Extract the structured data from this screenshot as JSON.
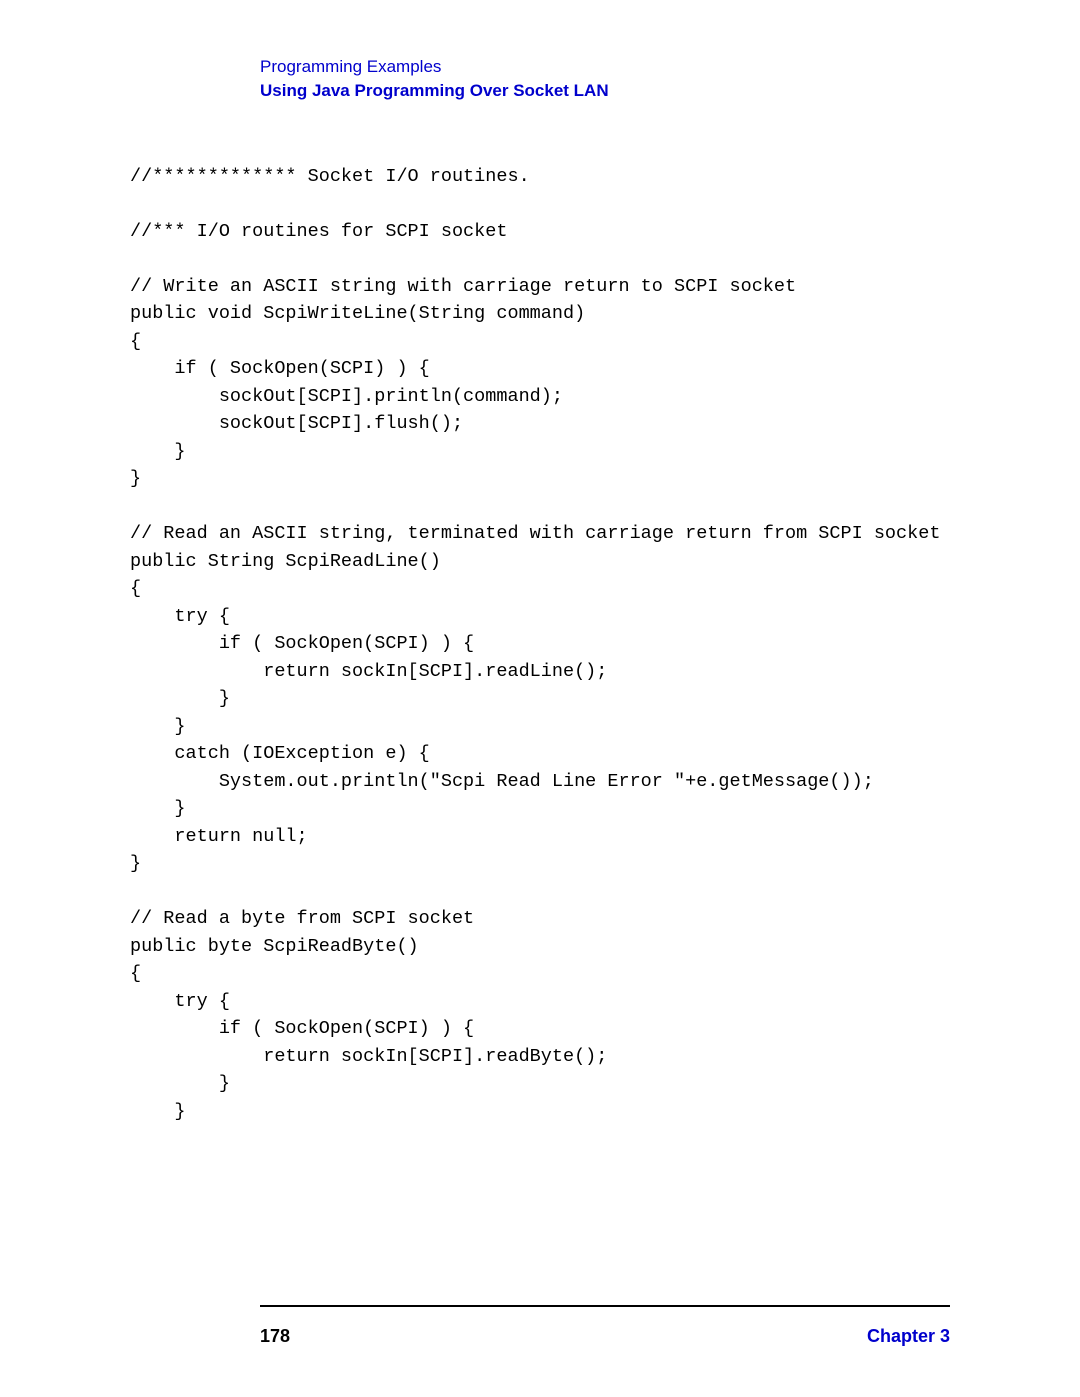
{
  "header": {
    "line1": "Programming Examples",
    "line2": "Using Java Programming Over Socket LAN"
  },
  "code": {
    "text": "//************* Socket I/O routines.\n\n//*** I/O routines for SCPI socket\n\n// Write an ASCII string with carriage return to SCPI socket\npublic void ScpiWriteLine(String command)\n{\n    if ( SockOpen(SCPI) ) {\n        sockOut[SCPI].println(command);\n        sockOut[SCPI].flush();\n    }\n}\n\n// Read an ASCII string, terminated with carriage return from SCPI socket\npublic String ScpiReadLine()\n{\n    try {\n        if ( SockOpen(SCPI) ) {\n            return sockIn[SCPI].readLine();\n        }\n    }\n    catch (IOException e) {\n        System.out.println(\"Scpi Read Line Error \"+e.getMessage());\n    }\n    return null;\n}\n\n// Read a byte from SCPI socket\npublic byte ScpiReadByte()\n{\n    try {\n        if ( SockOpen(SCPI) ) {\n            return sockIn[SCPI].readByte();\n        }\n    }"
  },
  "footer": {
    "page_number": "178",
    "chapter_label": "Chapter 3"
  },
  "colors": {
    "link_blue": "#0000cc",
    "text_black": "#000000",
    "background": "#ffffff"
  },
  "typography": {
    "header_font": "Arial",
    "header_size_pt": 13,
    "code_font": "Courier New",
    "code_size_pt": 14,
    "footer_font": "Arial",
    "footer_size_pt": 14
  }
}
